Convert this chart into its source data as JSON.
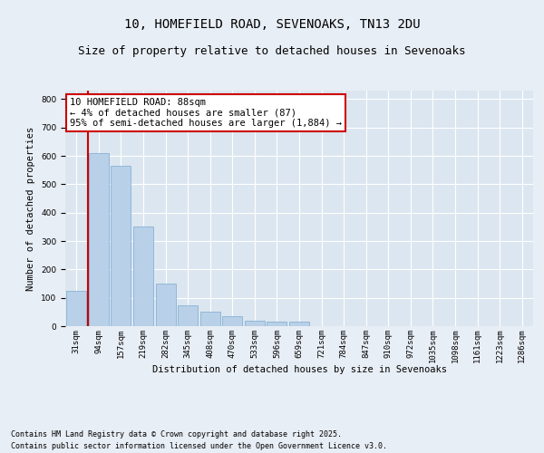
{
  "title_line1": "10, HOMEFIELD ROAD, SEVENOAKS, TN13 2DU",
  "title_line2": "Size of property relative to detached houses in Sevenoaks",
  "xlabel": "Distribution of detached houses by size in Sevenoaks",
  "ylabel": "Number of detached properties",
  "categories": [
    "31sqm",
    "94sqm",
    "157sqm",
    "219sqm",
    "282sqm",
    "345sqm",
    "408sqm",
    "470sqm",
    "533sqm",
    "596sqm",
    "659sqm",
    "721sqm",
    "784sqm",
    "847sqm",
    "910sqm",
    "972sqm",
    "1035sqm",
    "1098sqm",
    "1161sqm",
    "1223sqm",
    "1286sqm"
  ],
  "values": [
    125,
    610,
    565,
    350,
    150,
    72,
    50,
    35,
    20,
    15,
    15,
    0,
    0,
    0,
    0,
    0,
    0,
    0,
    0,
    0,
    0
  ],
  "bar_color": "#b8d0e8",
  "bar_edge_color": "#7aaad0",
  "highlight_bar_index": 1,
  "highlight_color": "#cc0000",
  "annotation_text": "10 HOMEFIELD ROAD: 88sqm\n← 4% of detached houses are smaller (87)\n95% of semi-detached houses are larger (1,884) →",
  "annotation_box_color": "#ffffff",
  "annotation_box_edge_color": "#cc0000",
  "ylim": [
    0,
    830
  ],
  "yticks": [
    0,
    100,
    200,
    300,
    400,
    500,
    600,
    700,
    800
  ],
  "background_color": "#e8eef5",
  "plot_background_color": "#dce6f0",
  "grid_color": "#ffffff",
  "footer_line1": "Contains HM Land Registry data © Crown copyright and database right 2025.",
  "footer_line2": "Contains public sector information licensed under the Open Government Licence v3.0.",
  "title_fontsize": 10,
  "subtitle_fontsize": 9,
  "axis_label_fontsize": 7.5,
  "tick_fontsize": 6.5,
  "annotation_fontsize": 7.5,
  "footer_fontsize": 6
}
